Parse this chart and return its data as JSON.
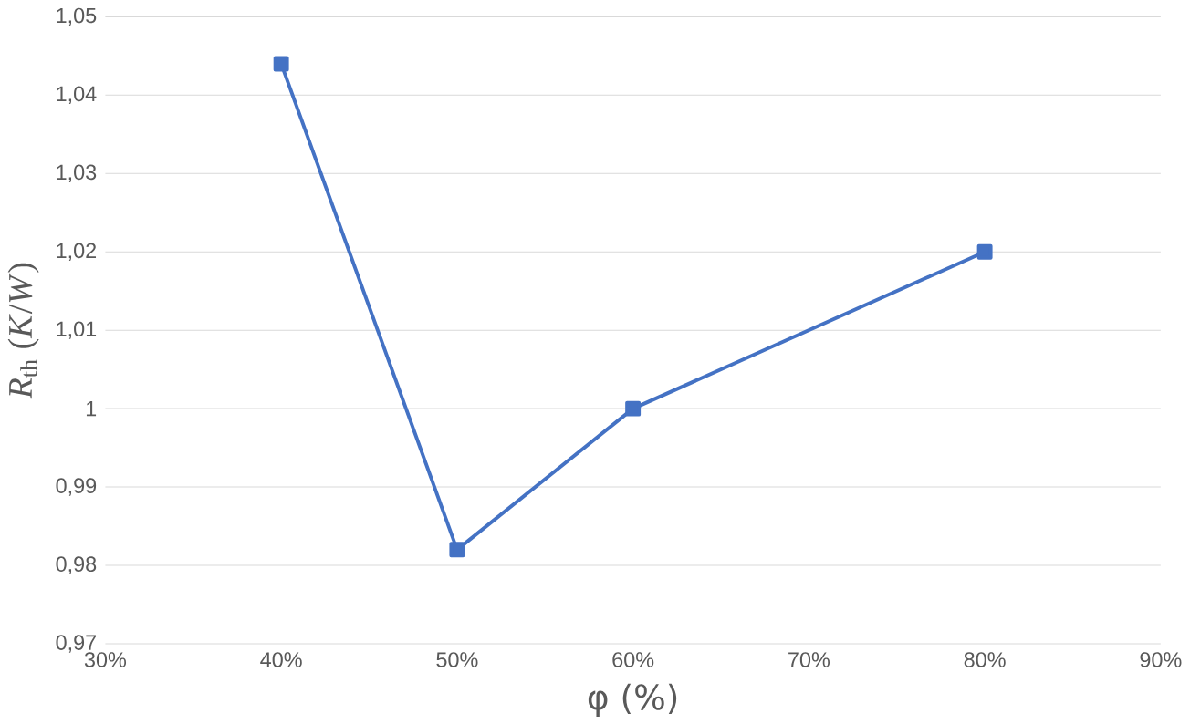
{
  "chart_data": {
    "type": "line",
    "xlabel": "φ (%)",
    "ylabel": "*R*$_{th}$ (*K*/*W*)",
    "x": [
      40,
      50,
      60,
      80
    ],
    "series": [
      {
        "color": "#4472c4",
        "values": [
          1.044,
          0.982,
          1.0,
          1.02
        ]
      }
    ],
    "xlim": [
      30,
      90
    ],
    "xticks": [
      {
        "value": 30,
        "label": "30%"
      },
      {
        "value": 40,
        "label": "40%"
      },
      {
        "value": 50,
        "label": "50%"
      },
      {
        "value": 60,
        "label": "60%"
      },
      {
        "value": 70,
        "label": "70%"
      },
      {
        "value": 80,
        "label": "80%"
      },
      {
        "value": 90,
        "label": "90%"
      }
    ],
    "ylim": [
      0.97,
      1.05
    ],
    "yticks": [
      {
        "value": 0.97,
        "label": "0,97"
      },
      {
        "value": 0.98,
        "label": "0,98"
      },
      {
        "value": 0.99,
        "label": "0,99"
      },
      {
        "value": 1,
        "label": "1"
      },
      {
        "value": 1.01,
        "label": "1,01"
      },
      {
        "value": 1.02,
        "label": "1,02"
      },
      {
        "value": 1.03,
        "label": "1,03"
      },
      {
        "value": 1.04,
        "label": "1,04"
      },
      {
        "value": 1.05,
        "label": "1,05"
      }
    ],
    "grid": "y",
    "marker": "square",
    "line_style": "solid"
  }
}
